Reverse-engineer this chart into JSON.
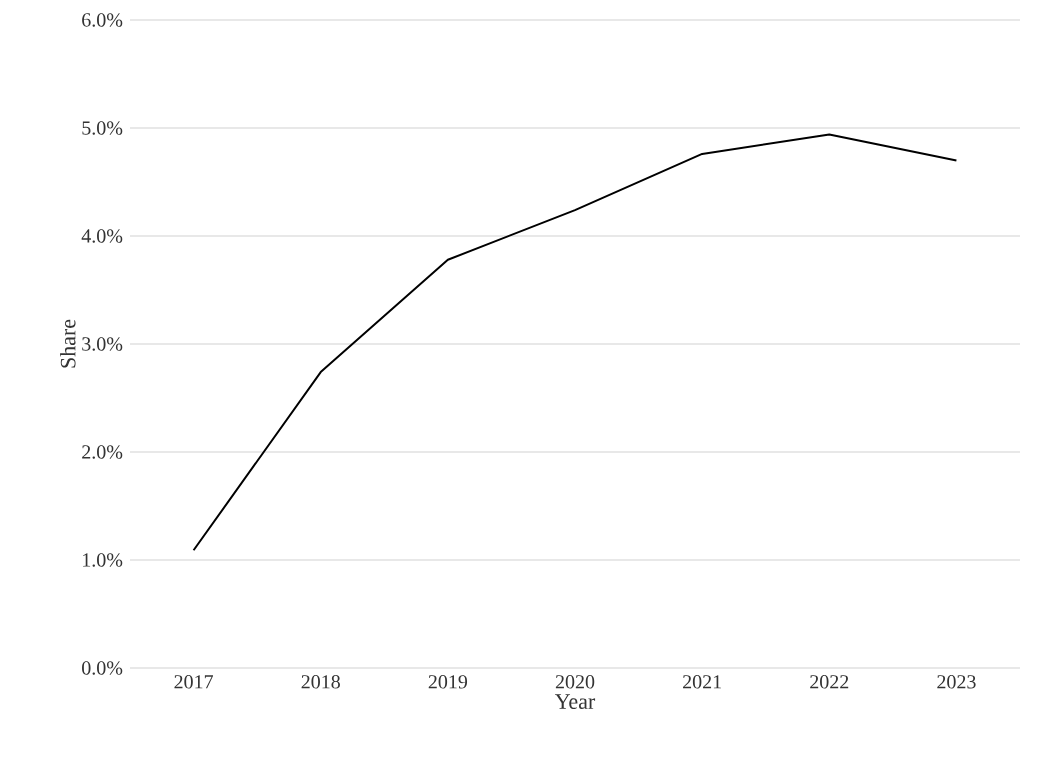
{
  "chart_data": {
    "type": "line",
    "xlabel": "Year",
    "ylabel": "Share",
    "categories": [
      "2017",
      "2018",
      "2019",
      "2020",
      "2021",
      "2022",
      "2023"
    ],
    "series": [
      {
        "color": "#000000",
        "values": [
          1.09,
          2.74,
          3.78,
          4.24,
          4.76,
          4.94,
          4.7
        ]
      }
    ],
    "ylim": [
      0,
      6
    ],
    "yticks": [
      {
        "value": 0,
        "label": "0.0%"
      },
      {
        "value": 1,
        "label": "1.0%"
      },
      {
        "value": 2,
        "label": "2.0%"
      },
      {
        "value": 3,
        "label": "3.0%"
      },
      {
        "value": 4,
        "label": "4.0%"
      },
      {
        "value": 5,
        "label": "5.0%"
      },
      {
        "value": 6,
        "label": "6.0%"
      }
    ],
    "grid": "y",
    "marker": "none",
    "line_style": "solid"
  }
}
